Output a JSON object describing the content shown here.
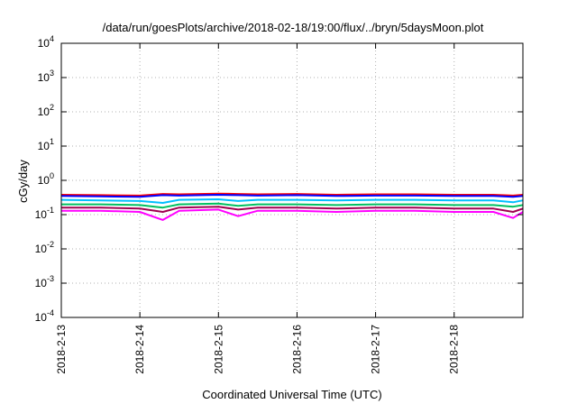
{
  "chart_data": {
    "type": "line",
    "title": "/data/run/goesPlots/archive/2018-02-18/19:00/flux/../bryn/5daysMoon.plot",
    "xlabel": "Coordinated Universal Time (UTC)",
    "ylabel": "cGy/day",
    "yscale": "log",
    "ylim": [
      0.0001,
      10000
    ],
    "xlim": [
      "2018-02-13",
      "2018-02-18 21:00"
    ],
    "grid": true,
    "legend": "none",
    "x_ticks": [
      "2018-2-13",
      "2018-2-14",
      "2018-2-15",
      "2018-2-16",
      "2018-2-17",
      "2018-2-18"
    ],
    "y_ticks": [
      {
        "base": "10",
        "exp": "4"
      },
      {
        "base": "10",
        "exp": "3"
      },
      {
        "base": "10",
        "exp": "2"
      },
      {
        "base": "10",
        "exp": "1"
      },
      {
        "base": "10",
        "exp": "0"
      },
      {
        "base": "10",
        "exp": "-1"
      },
      {
        "base": "10",
        "exp": "-2"
      },
      {
        "base": "10",
        "exp": "-3"
      },
      {
        "base": "10",
        "exp": "-4"
      }
    ],
    "x_dates": [
      "2018-02-13 00:00",
      "2018-02-13 12:00",
      "2018-02-14 00:00",
      "2018-02-14 07:00",
      "2018-02-14 12:00",
      "2018-02-15 00:00",
      "2018-02-15 06:00",
      "2018-02-15 12:00",
      "2018-02-16 00:00",
      "2018-02-16 12:00",
      "2018-02-17 00:00",
      "2018-02-17 12:00",
      "2018-02-18 00:00",
      "2018-02-18 12:00",
      "2018-02-18 18:00",
      "2018-02-18 21:00"
    ],
    "series": [
      {
        "color": "#ff0000",
        "values": [
          0.38,
          0.37,
          0.36,
          0.4,
          0.39,
          0.41,
          0.4,
          0.39,
          0.4,
          0.38,
          0.39,
          0.39,
          0.38,
          0.38,
          0.36,
          0.38
        ]
      },
      {
        "color": "#0000ff",
        "values": [
          0.35,
          0.34,
          0.33,
          0.37,
          0.36,
          0.38,
          0.37,
          0.36,
          0.37,
          0.35,
          0.36,
          0.36,
          0.35,
          0.35,
          0.33,
          0.35
        ]
      },
      {
        "color": "#00bfff",
        "values": [
          0.27,
          0.26,
          0.25,
          0.22,
          0.27,
          0.28,
          0.25,
          0.27,
          0.27,
          0.26,
          0.27,
          0.27,
          0.26,
          0.26,
          0.23,
          0.26
        ]
      },
      {
        "color": "#00c060",
        "values": [
          0.2,
          0.2,
          0.19,
          0.16,
          0.2,
          0.21,
          0.18,
          0.2,
          0.2,
          0.19,
          0.2,
          0.2,
          0.19,
          0.19,
          0.17,
          0.19
        ]
      },
      {
        "color": "#a00050",
        "values": [
          0.16,
          0.16,
          0.15,
          0.12,
          0.16,
          0.17,
          0.14,
          0.16,
          0.16,
          0.15,
          0.16,
          0.16,
          0.15,
          0.15,
          0.12,
          0.15
        ]
      },
      {
        "color": "#ff00ff",
        "values": [
          0.13,
          0.13,
          0.12,
          0.07,
          0.13,
          0.14,
          0.09,
          0.13,
          0.13,
          0.12,
          0.13,
          0.13,
          0.12,
          0.12,
          0.08,
          0.12
        ]
      }
    ]
  }
}
